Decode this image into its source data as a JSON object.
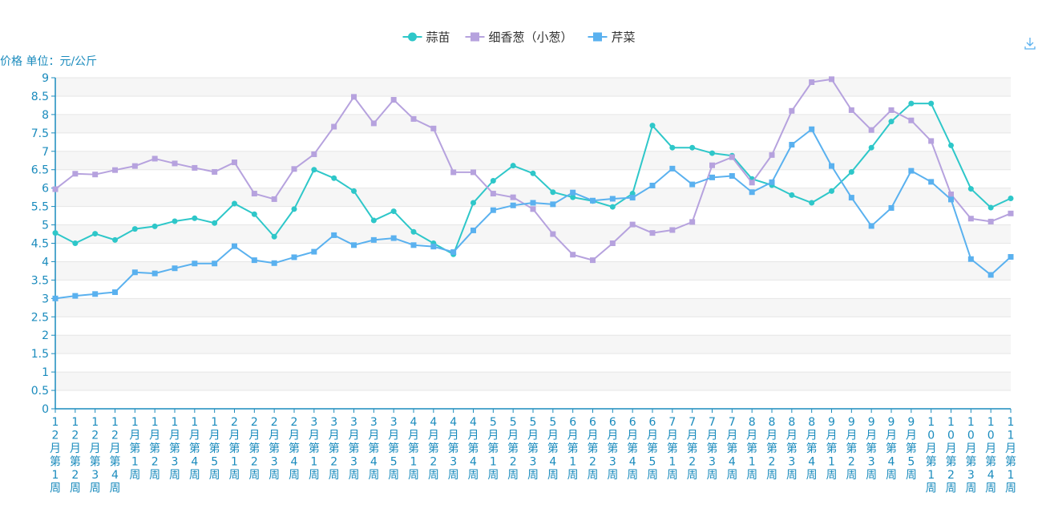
{
  "legend_icon": "download-icon",
  "colors": {
    "axis": "#1a8bbd",
    "grid_band": "#f6f6f6",
    "grid_line": "#e6e6e6"
  },
  "chart_data": {
    "type": "line",
    "ylabel": "价格 单位：元/公斤",
    "ylim": [
      0,
      9
    ],
    "ytick_step": 0.5,
    "ytick_labels": [
      "0",
      "0.5",
      "1",
      "1.5",
      "2",
      "2.5",
      "3",
      "3.5",
      "4",
      "4.5",
      "5",
      "5.5",
      "6",
      "6.5",
      "7",
      "7.5",
      "8",
      "8.5",
      "9"
    ],
    "legend_position": "top-center",
    "grid": "horizontal-bands",
    "categories": [
      "12月第1周",
      "12月第2周",
      "12月第3周",
      "12月第4周",
      "1月第1周",
      "1月第2周",
      "1月第3周",
      "1月第4周",
      "1月第5周",
      "2月第1周",
      "2月第2周",
      "2月第3周",
      "2月第4周",
      "3月第1周",
      "3月第2周",
      "3月第3周",
      "3月第4周",
      "3月第5周",
      "4月第1周",
      "4月第2周",
      "4月第3周",
      "4月第4周",
      "5月第1周",
      "5月第2周",
      "5月第3周",
      "5月第4周",
      "6月第1周",
      "6月第2周",
      "6月第3周",
      "6月第4周",
      "6月第5周",
      "7月第1周",
      "7月第2周",
      "7月第3周",
      "7月第4周",
      "8月第1周",
      "8月第2周",
      "8月第3周",
      "8月第4周",
      "9月第1周",
      "9月第2周",
      "9月第3周",
      "9月第4周",
      "9月第5周",
      "10月第1周",
      "10月第2周",
      "10月第3周",
      "10月第4周",
      "11月第1周"
    ],
    "series": [
      {
        "name": "蒜苗",
        "color": "#2ec7c9",
        "marker": "circle",
        "values": [
          4.78,
          4.5,
          4.76,
          4.59,
          4.89,
          4.96,
          5.1,
          5.18,
          5.05,
          5.58,
          5.29,
          4.68,
          5.43,
          6.5,
          6.27,
          5.92,
          5.12,
          5.37,
          4.81,
          4.5,
          4.2,
          5.6,
          6.2,
          6.61,
          6.4,
          5.89,
          5.75,
          5.65,
          5.49,
          5.85,
          7.7,
          7.1,
          7.1,
          6.95,
          6.88,
          6.25,
          6.08,
          5.81,
          5.6,
          5.92,
          6.44,
          7.1,
          7.81,
          8.3,
          8.3,
          7.16,
          5.98,
          5.47,
          5.72
        ]
      },
      {
        "name": "细香葱（小葱）",
        "color": "#b6a2de",
        "marker": "square",
        "values": [
          5.97,
          6.39,
          6.37,
          6.49,
          6.6,
          6.8,
          6.67,
          6.55,
          6.44,
          6.7,
          5.85,
          5.7,
          6.52,
          6.92,
          7.67,
          8.48,
          7.76,
          8.4,
          7.88,
          7.62,
          6.43,
          6.43,
          5.85,
          5.75,
          5.43,
          4.75,
          4.19,
          4.04,
          4.5,
          5.01,
          4.78,
          4.86,
          5.08,
          6.62,
          6.84,
          6.15,
          6.9,
          8.1,
          8.88,
          8.96,
          8.12,
          7.58,
          8.12,
          7.84,
          7.28,
          5.83,
          5.17,
          5.09,
          5.31
        ]
      },
      {
        "name": "芹菜",
        "color": "#5ab1ef",
        "marker": "square",
        "values": [
          3.0,
          3.07,
          3.12,
          3.17,
          3.71,
          3.68,
          3.82,
          3.95,
          3.95,
          4.42,
          4.04,
          3.96,
          4.12,
          4.27,
          4.72,
          4.45,
          4.59,
          4.64,
          4.45,
          4.41,
          4.26,
          4.85,
          5.4,
          5.53,
          5.6,
          5.56,
          5.88,
          5.66,
          5.71,
          5.74,
          6.07,
          6.53,
          6.1,
          6.29,
          6.33,
          5.89,
          6.16,
          7.18,
          7.6,
          6.6,
          5.74,
          4.97,
          5.46,
          6.47,
          6.17,
          5.69,
          4.07,
          3.64,
          4.13
        ]
      }
    ]
  }
}
